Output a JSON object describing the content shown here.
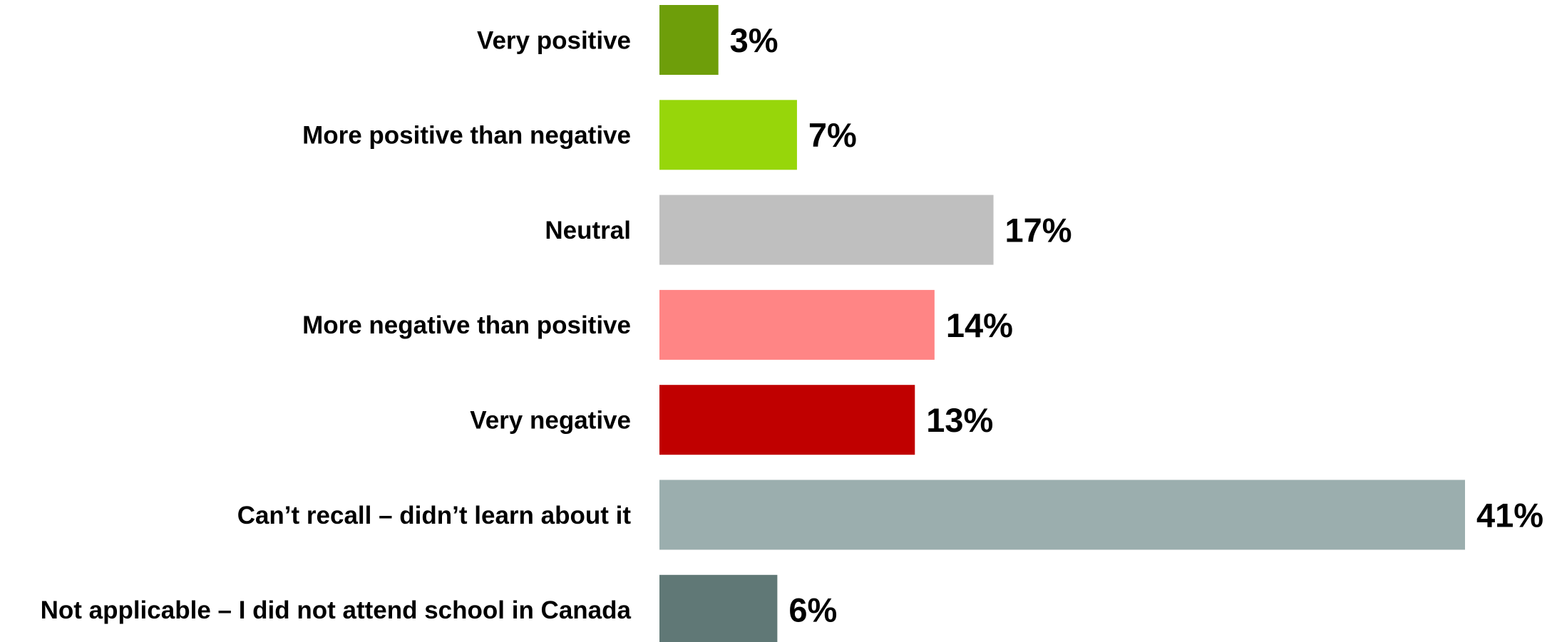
{
  "chart_data": {
    "type": "bar",
    "orientation": "horizontal",
    "categories": [
      "Very positive",
      "More positive than negative",
      "Neutral",
      "More negative than positive",
      "Very negative",
      "Can’t recall – didn’t learn about it",
      "Not applicable – I did not attend school in Canada"
    ],
    "values": [
      3,
      7,
      17,
      14,
      13,
      41,
      6
    ],
    "value_labels": [
      "3%",
      "7%",
      "17%",
      "14%",
      "13%",
      "41%",
      "6%"
    ],
    "colors": [
      "#6e9e0a",
      "#97d60a",
      "#bfbfbf",
      "#ff8585",
      "#c00000",
      "#9baeae",
      "#607876"
    ],
    "title": "",
    "xlabel": "",
    "ylabel": "",
    "xlim": [
      0,
      41
    ],
    "grid": false,
    "legend": "none"
  }
}
